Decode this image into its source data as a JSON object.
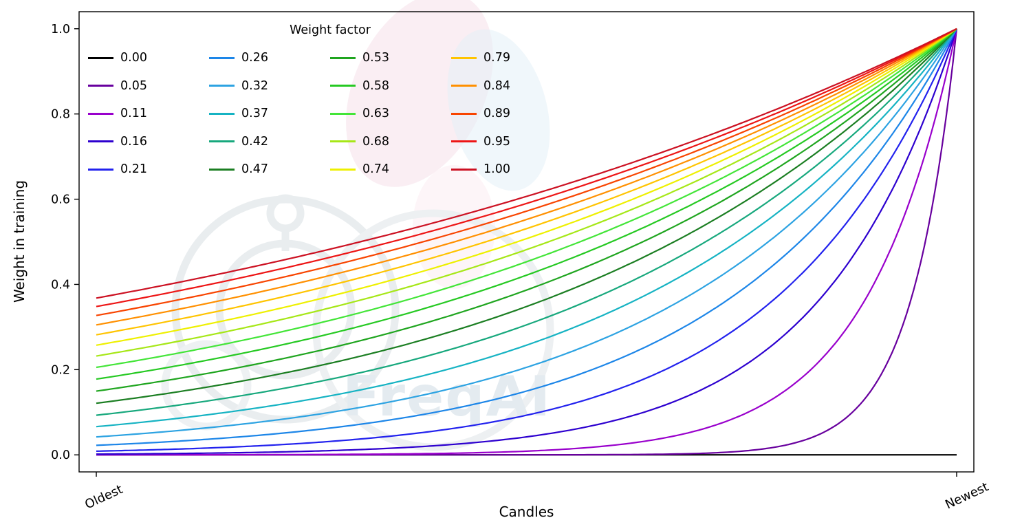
{
  "chart_data": {
    "type": "line",
    "title": "",
    "xlabel": "Candles",
    "ylabel": "Weight in training",
    "x_tick_labels": [
      "Oldest",
      "Newest"
    ],
    "y_ticks": [
      0.0,
      0.2,
      0.4,
      0.6,
      0.8,
      1.0
    ],
    "xlim": [
      -0.02,
      1.02
    ],
    "ylim": [
      -0.04,
      1.04
    ],
    "grid": false,
    "legend_title": "Weight factor",
    "legend_position": "upper left",
    "legend_columns": 4,
    "watermark": "FreqAI",
    "formula": "weight(x) = exp(-(1 - x) / w) for w > 0; flat 0 for w = 0; x runs 0 (Oldest) to 1 (Newest); all curves with w > 0 converge to 1.0 at Newest",
    "series": [
      {
        "label": "0.00",
        "w": 0.0,
        "color": "#000000",
        "y_at_oldest": 0.0
      },
      {
        "label": "0.05",
        "w": 0.0526,
        "color": "#68009e",
        "y_at_oldest": 0.0
      },
      {
        "label": "0.11",
        "w": 0.1053,
        "color": "#9900cc",
        "y_at_oldest": 0.0001
      },
      {
        "label": "0.16",
        "w": 0.1579,
        "color": "#2d00cf",
        "y_at_oldest": 0.0018
      },
      {
        "label": "0.21",
        "w": 0.2105,
        "color": "#2222ee",
        "y_at_oldest": 0.0087
      },
      {
        "label": "0.26",
        "w": 0.2632,
        "color": "#1d86e8",
        "y_at_oldest": 0.022
      },
      {
        "label": "0.32",
        "w": 0.3158,
        "color": "#2da3e2",
        "y_at_oldest": 0.042
      },
      {
        "label": "0.37",
        "w": 0.3684,
        "color": "#16b3c3",
        "y_at_oldest": 0.066
      },
      {
        "label": "0.42",
        "w": 0.4211,
        "color": "#17a87d",
        "y_at_oldest": 0.093
      },
      {
        "label": "0.47",
        "w": 0.4737,
        "color": "#1b7e22",
        "y_at_oldest": 0.121
      },
      {
        "label": "0.53",
        "w": 0.5263,
        "color": "#1fa51f",
        "y_at_oldest": 0.15
      },
      {
        "label": "0.58",
        "w": 0.5789,
        "color": "#25c922",
        "y_at_oldest": 0.178
      },
      {
        "label": "0.63",
        "w": 0.6316,
        "color": "#43e538",
        "y_at_oldest": 0.205
      },
      {
        "label": "0.68",
        "w": 0.6842,
        "color": "#a6e717",
        "y_at_oldest": 0.232
      },
      {
        "label": "0.74",
        "w": 0.7368,
        "color": "#eef000",
        "y_at_oldest": 0.257
      },
      {
        "label": "0.79",
        "w": 0.7895,
        "color": "#ffc400",
        "y_at_oldest": 0.282
      },
      {
        "label": "0.84",
        "w": 0.8421,
        "color": "#ff9000",
        "y_at_oldest": 0.305
      },
      {
        "label": "0.89",
        "w": 0.8947,
        "color": "#f84400",
        "y_at_oldest": 0.327
      },
      {
        "label": "0.95",
        "w": 0.9474,
        "color": "#ed1515",
        "y_at_oldest": 0.348
      },
      {
        "label": "1.00",
        "w": 1.0,
        "color": "#cc1122",
        "y_at_oldest": 0.368
      }
    ]
  }
}
